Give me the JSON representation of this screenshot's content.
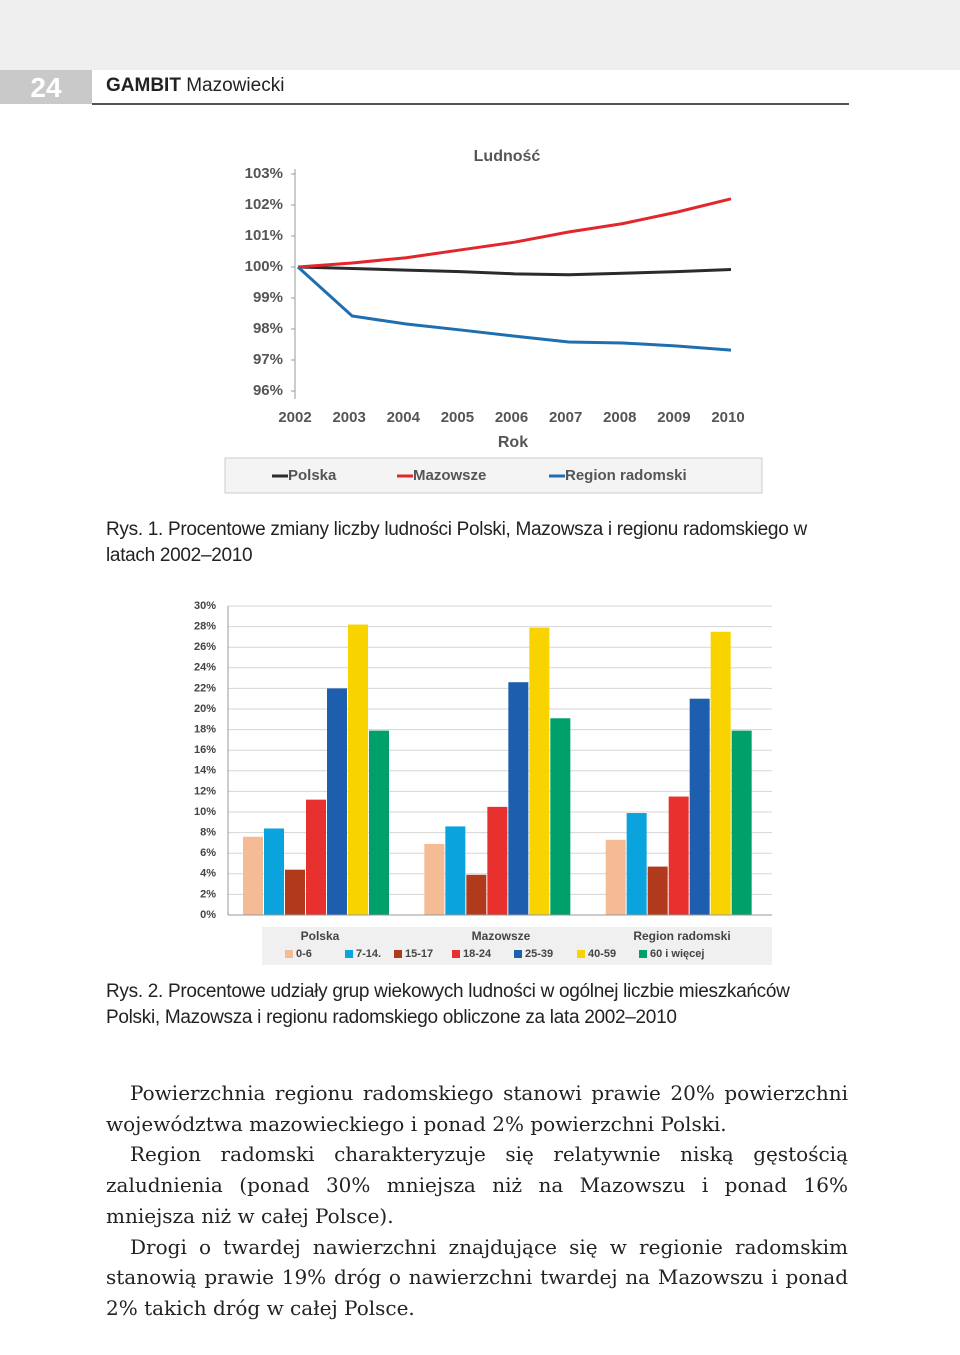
{
  "header": {
    "page_number": "24",
    "brand": "GAMBIT",
    "region": "Mazowiecki"
  },
  "chart_data": [
    {
      "type": "line",
      "title": "Ludność",
      "x_label": "Rok",
      "x": [
        2002,
        2003,
        2004,
        2005,
        2006,
        2007,
        2008,
        2009,
        2010
      ],
      "xlim": [
        2002,
        2010
      ],
      "xticks": [
        2002,
        2003,
        2004,
        2005,
        2006,
        2007,
        2008,
        2009,
        2010
      ],
      "ylim": [
        96,
        103
      ],
      "yticks": [
        {
          "value": 96,
          "label": "96%"
        },
        {
          "value": 97,
          "label": "97%"
        },
        {
          "value": 98,
          "label": "98%"
        },
        {
          "value": 99,
          "label": "99%"
        },
        {
          "value": 100,
          "label": "100%"
        },
        {
          "value": 101,
          "label": "101%"
        },
        {
          "value": 102,
          "label": "102%"
        },
        {
          "value": 103,
          "label": "103%"
        }
      ],
      "legend": "bottom",
      "series": [
        {
          "name": "Polska",
          "color": "#2b2b2b",
          "values": [
            100,
            99.95,
            99.9,
            99.85,
            99.78,
            99.75,
            99.8,
            99.85,
            99.92
          ]
        },
        {
          "name": "Mazowsze",
          "color": "#e3262b",
          "values": [
            100,
            100.13,
            100.3,
            100.55,
            100.8,
            101.13,
            101.4,
            101.77,
            102.2
          ]
        },
        {
          "name": "Region radomski",
          "color": "#1f6fb0",
          "values": [
            100,
            98.42,
            98.16,
            97.97,
            97.77,
            97.58,
            97.55,
            97.45,
            97.32
          ]
        }
      ]
    },
    {
      "type": "bar",
      "categories": [
        "Polska",
        "Mazowsze",
        "Region radomski"
      ],
      "ylim": [
        0,
        30
      ],
      "yticks": [
        {
          "value": 0,
          "label": "0%"
        },
        {
          "value": 2,
          "label": "2%"
        },
        {
          "value": 4,
          "label": "4%"
        },
        {
          "value": 6,
          "label": "6%"
        },
        {
          "value": 8,
          "label": "8%"
        },
        {
          "value": 10,
          "label": "10%"
        },
        {
          "value": 12,
          "label": "12%"
        },
        {
          "value": 14,
          "label": "14%"
        },
        {
          "value": 16,
          "label": "16%"
        },
        {
          "value": 18,
          "label": "18%"
        },
        {
          "value": 20,
          "label": "20%"
        },
        {
          "value": 22,
          "label": "22%"
        },
        {
          "value": 24,
          "label": "24%"
        },
        {
          "value": 26,
          "label": "26%"
        },
        {
          "value": 28,
          "label": "28%"
        },
        {
          "value": 30,
          "label": "30%"
        }
      ],
      "grid": true,
      "legend": "bottom",
      "series": [
        {
          "name": "0-6",
          "color": "#f5bb94",
          "values": [
            7.6,
            6.9,
            7.3
          ]
        },
        {
          "name": "7-14.",
          "color": "#0aa3dd",
          "values": [
            8.4,
            8.6,
            9.9
          ]
        },
        {
          "name": "15-17",
          "color": "#b23a1c",
          "values": [
            4.4,
            3.9,
            4.7
          ]
        },
        {
          "name": "18-24",
          "color": "#e8312f",
          "values": [
            11.2,
            10.5,
            11.5
          ]
        },
        {
          "name": "25-39",
          "color": "#1d5fae",
          "values": [
            22.0,
            22.6,
            21.0
          ]
        },
        {
          "name": "40-59",
          "color": "#f8d300",
          "values": [
            28.2,
            27.9,
            27.5
          ]
        },
        {
          "name": "60 i więcej",
          "color": "#00a06b",
          "values": [
            17.9,
            19.1,
            17.9
          ]
        }
      ]
    }
  ],
  "captions": [
    "Rys. 1. Procentowe zmiany liczby ludności Polski, Mazowsza i regionu radomskiego w latach 2002–2010",
    "Rys. 2. Procentowe udziały grup wiekowych ludności w ogólnej liczbie mieszkańców Polski, Mazowsza i regionu radomskiego obliczone za lata 2002–2010"
  ],
  "paragraphs": [
    "Powierzchnia regionu radomskiego stanowi prawie 20% powierzchni województwa mazowieckiego i ponad 2% powierzchni Polski.",
    "Region radomski charakteryzuje się relatywnie niską gęstością zaludnienia (ponad 30% mniejsza niż na Mazowszu i ponad 16% mniejsza niż w całej Polsce).",
    "Drogi o twardej nawierzchni znajdujące się w regionie radomskim stanowią prawie 19% dróg o nawierzchni twardej na Mazowszu i ponad 2% takich dróg w całej Polsce."
  ]
}
